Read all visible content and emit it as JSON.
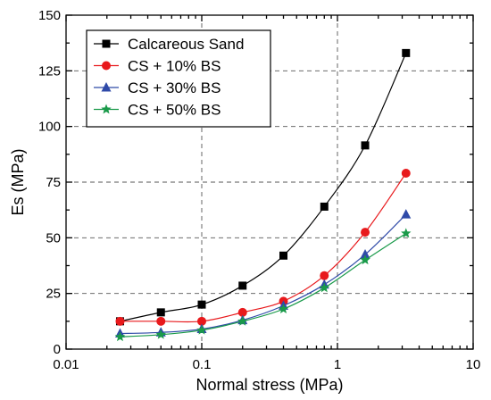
{
  "chart_data": {
    "type": "line",
    "xlabel": "Normal stress (MPa)",
    "ylabel": "Es (MPa)",
    "xscale": "log",
    "xlim": [
      0.01,
      10
    ],
    "ylim": [
      0,
      150
    ],
    "x_ticks": [
      0.01,
      0.1,
      1,
      10
    ],
    "x_tick_labels": [
      "0.01",
      "0.1",
      "1",
      "10"
    ],
    "y_ticks": [
      0,
      25,
      50,
      75,
      100,
      125,
      150
    ],
    "y_tick_labels": [
      "0",
      "25",
      "50",
      "75",
      "100",
      "125",
      "150"
    ],
    "grid": true,
    "legend_position": "top-left",
    "x": [
      0.025,
      0.05,
      0.1,
      0.2,
      0.4,
      0.8,
      1.6,
      3.2
    ],
    "series": [
      {
        "name": "Calcareous Sand",
        "color": "#000000",
        "marker": "square",
        "values": [
          12.5,
          16.5,
          20,
          28.5,
          42,
          64,
          91.5,
          133
        ]
      },
      {
        "name": "CS + 10% BS",
        "color": "#e8191c",
        "marker": "circle",
        "values": [
          12.5,
          12.5,
          12.5,
          16.5,
          21.5,
          33,
          52.5,
          79
        ]
      },
      {
        "name": "CS + 30% BS",
        "color": "#2f4aa8",
        "marker": "triangle",
        "values": [
          7,
          7.5,
          9,
          13,
          19.5,
          29,
          42.5,
          60.5
        ]
      },
      {
        "name": "CS + 50% BS",
        "color": "#1a9a4a",
        "marker": "star",
        "values": [
          5.5,
          6.5,
          8.5,
          12.5,
          18,
          27.5,
          40,
          52
        ]
      }
    ]
  }
}
